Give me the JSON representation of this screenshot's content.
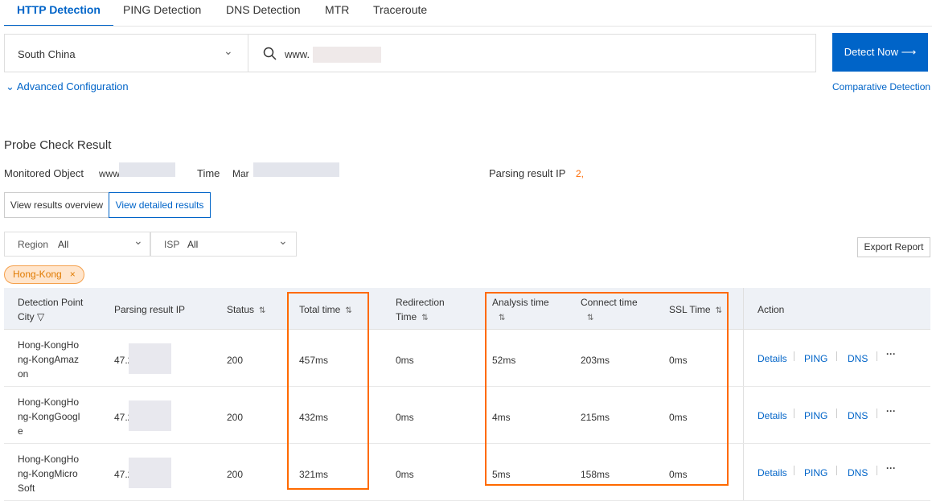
{
  "tabs": [
    "HTTP Detection",
    "PING Detection",
    "DNS Detection",
    "MTR",
    "Traceroute"
  ],
  "search": {
    "region": "South China",
    "url_value": "www.",
    "detect_label": "Detect Now",
    "advanced_label": "Advanced Configuration",
    "comparative_label": "Comparative Detection"
  },
  "result": {
    "title": "Probe Check Result",
    "monitored_label": "Monitored Object",
    "monitored_value": "www",
    "time_label": "Time",
    "time_value": "Mar",
    "parsing_label": "Parsing result IP",
    "parsing_value": "2,",
    "overview_label": "View results overview",
    "detailed_label": "View detailed results"
  },
  "filters": {
    "region_label": "Region",
    "region_value": "All",
    "isp_label": "ISP",
    "isp_value": "All",
    "export_label": "Export Report",
    "tag": "Hong-Kong"
  },
  "table": {
    "headers": {
      "city": "Detection Point City",
      "ip": "Parsing result IP",
      "status": "Status",
      "total": "Total time",
      "redirect": "Redirection Time",
      "analysis": "Analysis time",
      "connect": "Connect time",
      "ssl": "SSL Time",
      "action": "Action"
    },
    "rows": [
      {
        "city": "Hong-KongHong-KongAmazon",
        "ip": "47.2",
        "status": "200",
        "total": "457ms",
        "redirect": "0ms",
        "analysis": "52ms",
        "connect": "203ms",
        "ssl": "0ms"
      },
      {
        "city": "Hong-KongHong-KongGoogle",
        "ip": "47.2",
        "status": "200",
        "total": "432ms",
        "redirect": "0ms",
        "analysis": "4ms",
        "connect": "215ms",
        "ssl": "0ms"
      },
      {
        "city": "Hong-KongHong-KongMicroSoft",
        "ip": "47.2",
        "status": "200",
        "total": "321ms",
        "redirect": "0ms",
        "analysis": "5ms",
        "connect": "158ms",
        "ssl": "0ms"
      }
    ],
    "actions": [
      "Details",
      "PING",
      "DNS",
      "···"
    ]
  },
  "colors": {
    "accent": "#0064c8",
    "highlight": "#ff6a00",
    "tag_bg": "#ffe5cc"
  }
}
